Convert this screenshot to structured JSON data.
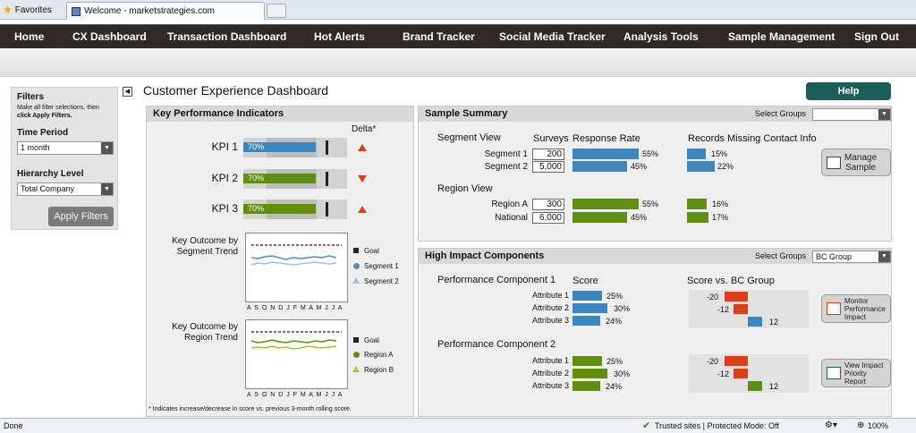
{
  "browser": {
    "favorites_label": "Favorites",
    "tab_title": "Welcome - marketstrategies.com",
    "status_done": "Done",
    "status_zone": "Trusted sites | Protected Mode: Off",
    "zoom": "100%"
  },
  "nav": [
    "Home",
    "CX Dashboard",
    "Transaction Dashboard",
    "Hot Alerts",
    "Brand Tracker",
    "Social Media Tracker",
    "Analysis Tools",
    "Sample Management",
    "Sign Out"
  ],
  "filters": {
    "title": "Filters",
    "instructions_1": "Make all filter selections, then",
    "instructions_2": "click Apply Filters.",
    "time_period_label": "Time Period",
    "time_period_value": "1 month",
    "hierarchy_label": "Hierarchy Level",
    "hierarchy_value": "Total Company",
    "apply_button": "Apply Filters"
  },
  "page_title": "Customer Experience Dashboard",
  "help_button": "Help",
  "kpi_panel": {
    "title": "Key Performance Indicators",
    "delta_header": "Delta*",
    "kpis": [
      {
        "name": "KPI 1",
        "value": "70%",
        "fraction": 0.7,
        "color": "#3d86c0",
        "delta": "up"
      },
      {
        "name": "KPI 2",
        "value": "70%",
        "fraction": 0.7,
        "color": "#5f8e12",
        "delta": "down"
      },
      {
        "name": "KPI 3",
        "value": "70%",
        "fraction": 0.7,
        "color": "#5f8e12",
        "delta": "up"
      }
    ],
    "trend1": {
      "title_1": "Key Outcome by",
      "title_2": "Segment Trend",
      "legend": [
        "Goal",
        "Segment 1",
        "Segment 2"
      ],
      "colors": [
        "#222222",
        "#4a8fc4",
        "#9cc3e3"
      ]
    },
    "trend2": {
      "title_1": "Key Outcome by",
      "title_2": "Region Trend",
      "legend": [
        "Goal",
        "Region A",
        "Region B"
      ],
      "colors": [
        "#222222",
        "#5f8e12",
        "#9ccc3a"
      ]
    },
    "months": "A S O N D J F M A M J J A",
    "footnote": "* Indicates increase/decrease in score vs. previous 3-month rolling score."
  },
  "sample_summary": {
    "title": "Sample Summary",
    "select_groups_label": "Select Groups",
    "select_groups_value": "",
    "segment_view": "Segment View",
    "col_surveys": "Surveys",
    "col_response": "Response Rate",
    "col_missing": "Records Missing Contact Info",
    "segments": [
      {
        "name": "Segment 1",
        "surveys": "200",
        "response": "55%",
        "response_val": 55,
        "missing": "15%",
        "missing_val": 15
      },
      {
        "name": "Segment 2",
        "surveys": "5,000",
        "response": "45%",
        "response_val": 45,
        "missing": "22%",
        "missing_val": 22
      }
    ],
    "region_view": "Region View",
    "regions": [
      {
        "name": "Region A",
        "surveys": "300",
        "response": "55%",
        "response_val": 55,
        "missing": "16%",
        "missing_val": 16
      },
      {
        "name": "National",
        "surveys": "6,000",
        "response": "45%",
        "response_val": 45,
        "missing": "17%",
        "missing_val": 17
      }
    ],
    "manage_button_1": "Manage",
    "manage_button_2": "Sample"
  },
  "high_impact": {
    "title": "High Impact Components",
    "select_groups_label": "Select Groups",
    "select_groups_value": "BC Group",
    "score_header": "Score",
    "bc_header": "Score vs. BC Group",
    "components": [
      {
        "title": "Performance Component 1",
        "color": "#3d86c0",
        "attributes": [
          {
            "name": "Attribute 1",
            "score": "25%",
            "score_val": 25
          },
          {
            "name": "Attribute 2",
            "score": "30%",
            "score_val": 30
          },
          {
            "name": "Attribute 3",
            "score": "24%",
            "score_val": 24
          }
        ],
        "diffs": [
          "-20",
          "-12",
          "12"
        ],
        "diff_vals": [
          -20,
          -12,
          12
        ],
        "button_1": "Monitor",
        "button_2": "Performance",
        "button_3": "Impact"
      },
      {
        "title": "Performance Component 2",
        "color": "#5f8e12",
        "attributes": [
          {
            "name": "Attribute 1",
            "score": "25%",
            "score_val": 25
          },
          {
            "name": "Attribute 2",
            "score": "30%",
            "score_val": 30
          },
          {
            "name": "Attribute 3",
            "score": "24%",
            "score_val": 24
          }
        ],
        "diffs": [
          "-20",
          "-12",
          "12"
        ],
        "diff_vals": [
          -20,
          -12,
          12
        ],
        "button_1": "View Impact",
        "button_2": "Priority",
        "button_3": "Report"
      }
    ]
  }
}
